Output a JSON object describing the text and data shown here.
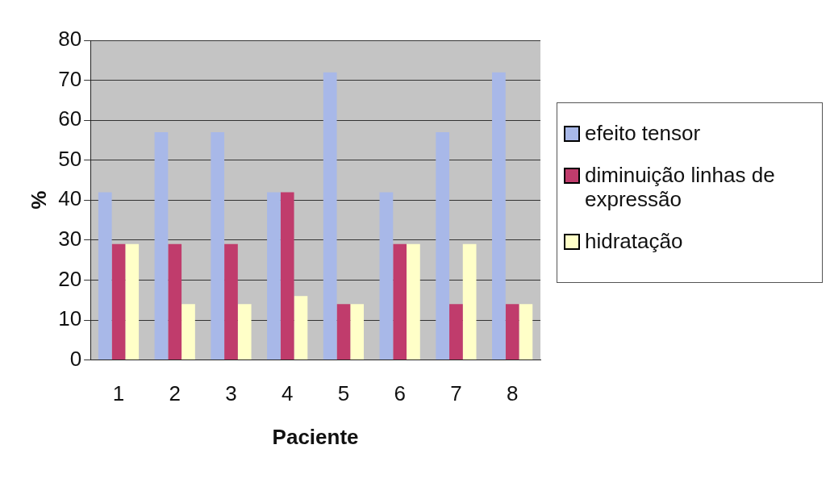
{
  "chart_data": {
    "type": "bar",
    "xlabel": "Paciente",
    "ylabel": "%",
    "categories": [
      "1",
      "2",
      "3",
      "4",
      "5",
      "6",
      "7",
      "8"
    ],
    "series": [
      {
        "name": "efeito tensor",
        "color": "#a8b8e8",
        "values": [
          42,
          57,
          57,
          42,
          72,
          42,
          57,
          72
        ]
      },
      {
        "name": "diminuição linhas de expressão",
        "color": "#c03c6c",
        "values": [
          29,
          29,
          29,
          42,
          14,
          29,
          14,
          14
        ]
      },
      {
        "name": "hidratação",
        "color": "#ffffc8",
        "values": [
          29,
          14,
          14,
          16,
          14,
          29,
          29,
          14
        ]
      }
    ],
    "ylim": [
      0,
      80
    ],
    "yticks": [
      0,
      10,
      20,
      30,
      40,
      50,
      60,
      70,
      80
    ],
    "grid": "y",
    "legend": "right"
  }
}
